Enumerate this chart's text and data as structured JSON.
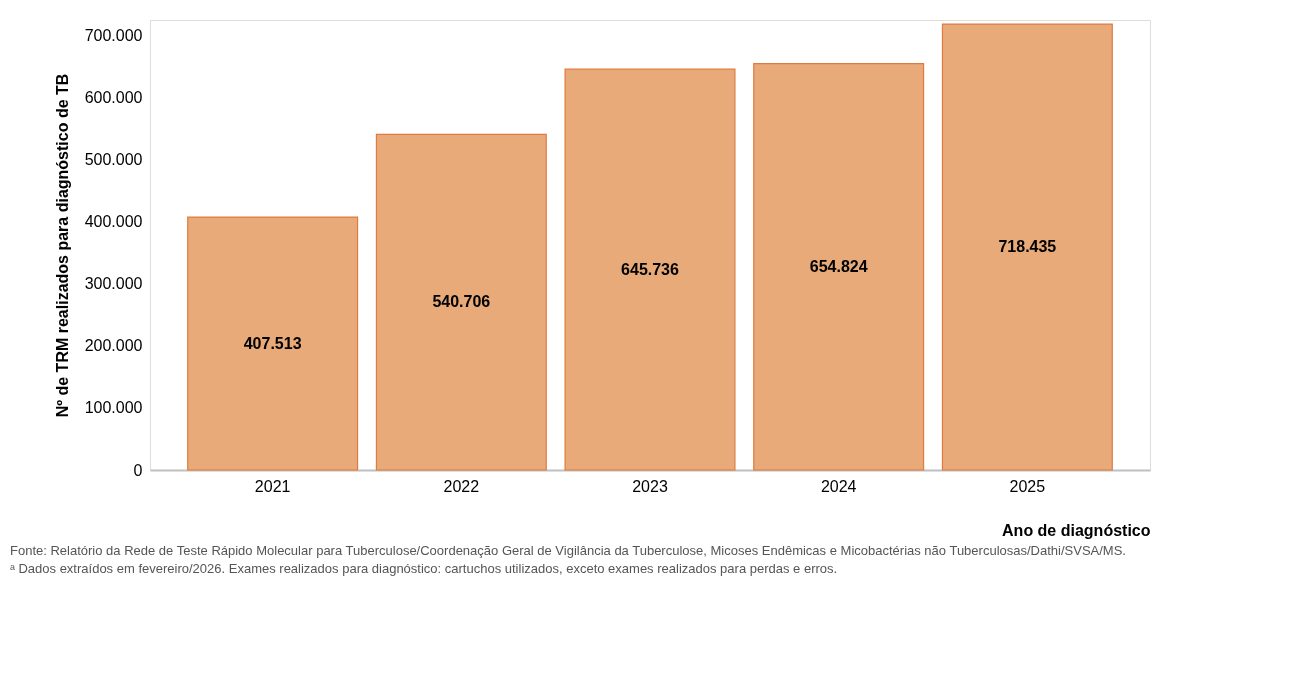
{
  "chart_data": {
    "type": "bar",
    "categories": [
      "2021",
      "2022",
      "2023",
      "2024",
      "2025"
    ],
    "values": [
      407513,
      540706,
      645736,
      654824,
      718435
    ],
    "value_labels": [
      "407.513",
      "540.706",
      "645.736",
      "654.824",
      "718.435"
    ],
    "color": "#e8aa78",
    "ylabel": "Nº de TRM realizados para diagnóstico de TB",
    "xlabel": "Ano de diagnóstico",
    "ylim": [
      0,
      725000
    ],
    "yticks": [
      0,
      {
        "value": 100000,
        "label": "100.000"
      },
      {
        "value": 200000,
        "label": "200.000"
      },
      {
        "value": 300000,
        "label": "300.000"
      },
      {
        "value": 400000,
        "label": "400.000"
      },
      {
        "value": 500000,
        "label": "500.000"
      },
      {
        "value": 600000,
        "label": "600.000"
      },
      {
        "value": 700000,
        "label": "700.000"
      }
    ],
    "grid": false,
    "annotations": [
      "Fonte: Relatório da Rede de Teste Rápido Molecular para Tuberculose/Coordenação Geral de Vigilância da Tuberculose, Micoses Endêmicas e Micobactérias não Tuberculosas/Dathi/SVSA/MS.",
      "ᵃ Dados extraídos em fevereiro/2026. Exames realizados para diagnóstico: cartuchos utilizados, exceto exames realizados para perdas e erros."
    ]
  }
}
